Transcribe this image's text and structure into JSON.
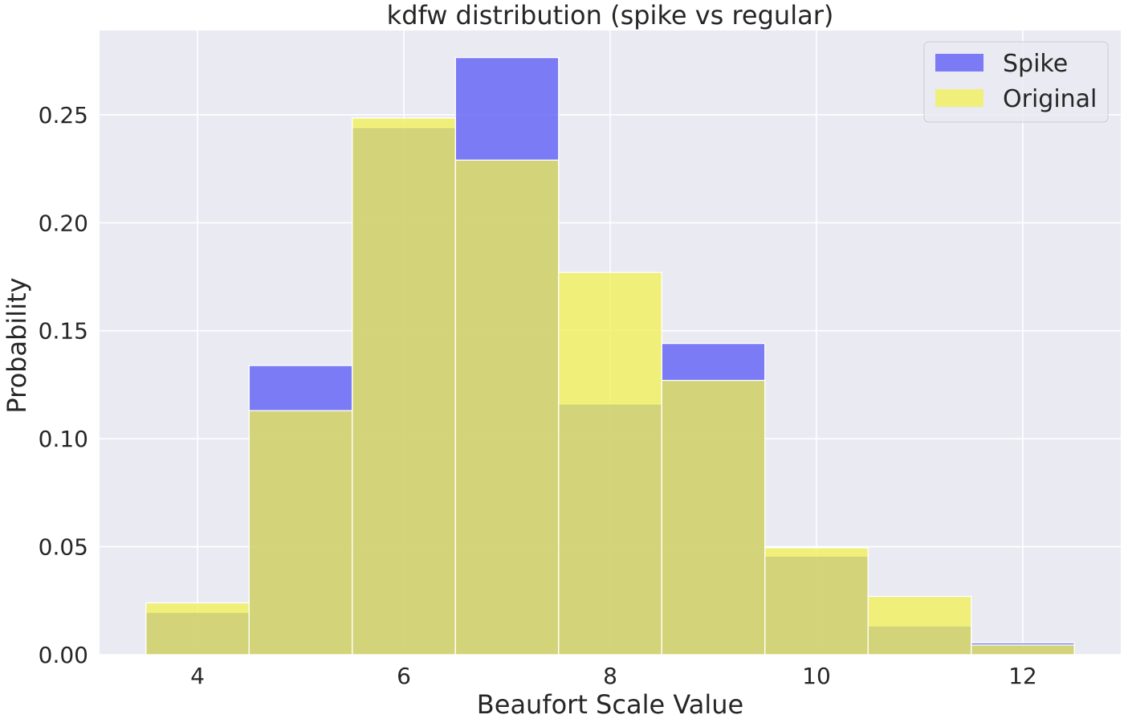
{
  "chart_data": {
    "type": "bar",
    "subtype": "histogram-overlay",
    "title": "kdfw distribution (spike vs regular)",
    "xlabel": "Beaufort Scale Value",
    "ylabel": "Probability",
    "bins": [
      4,
      5,
      6,
      7,
      8,
      9,
      10,
      11,
      12
    ],
    "bin_width": 1,
    "xlim": [
      3.05,
      12.95
    ],
    "ylim": [
      0,
      0.289
    ],
    "xticks": [
      "4",
      "6",
      "8",
      "10",
      "12"
    ],
    "xtick_values": [
      4,
      6,
      8,
      10,
      12
    ],
    "yticks": [
      "0.00",
      "0.05",
      "0.10",
      "0.15",
      "0.20",
      "0.25"
    ],
    "ytick_values": [
      0,
      0.05,
      0.1,
      0.15,
      0.2,
      0.25
    ],
    "series": [
      {
        "name": "Spike",
        "color": "#5555f5",
        "values": [
          0.0197,
          0.1339,
          0.2441,
          0.2765,
          0.1161,
          0.1441,
          0.0457,
          0.0134,
          0.0055
        ]
      },
      {
        "name": "Original",
        "color": "#f0f050",
        "values": [
          0.024,
          0.113,
          0.2485,
          0.229,
          0.177,
          0.127,
          0.0495,
          0.027,
          0.0045
        ]
      }
    ],
    "grid": true,
    "legend_position": "top-right",
    "background": "#eaeaf2"
  }
}
